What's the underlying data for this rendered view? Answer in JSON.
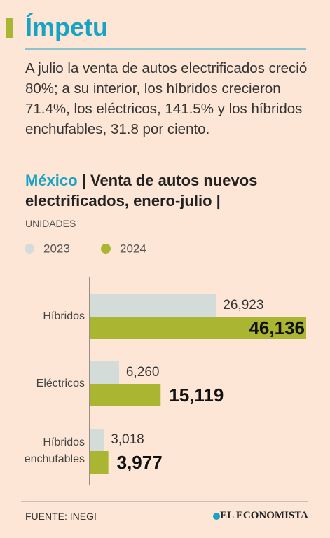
{
  "header": {
    "title": "Ímpetu"
  },
  "intro": "A julio la venta de autos electrificados creció 80%; a su interior, los híbridos crecieron 71.4%, los eléctricos, 141.5% y los híbridos enchufables, 31.8 por ciento.",
  "chart_data": {
    "type": "bar",
    "orientation": "horizontal",
    "country": "México",
    "title": "| Venta de autos nuevos electrificados, enero-julio |",
    "unit_label": "UNIDADES",
    "categories": [
      "Híbridos",
      "Eléctricos",
      "Híbridos enchufables"
    ],
    "series": [
      {
        "name": "2023",
        "color": "#d3dcd9",
        "values": [
          26923,
          6260,
          3018
        ],
        "value_labels": [
          "26,923",
          "6,260",
          "3,018"
        ]
      },
      {
        "name": "2024",
        "color": "#aab531",
        "values": [
          46136,
          15119,
          3977
        ],
        "value_labels": [
          "46,136",
          "15,119",
          "3,977"
        ]
      }
    ]
  },
  "footer": {
    "source": "FUENTE: INEGI",
    "logo": "EL ECONOMISTA"
  }
}
